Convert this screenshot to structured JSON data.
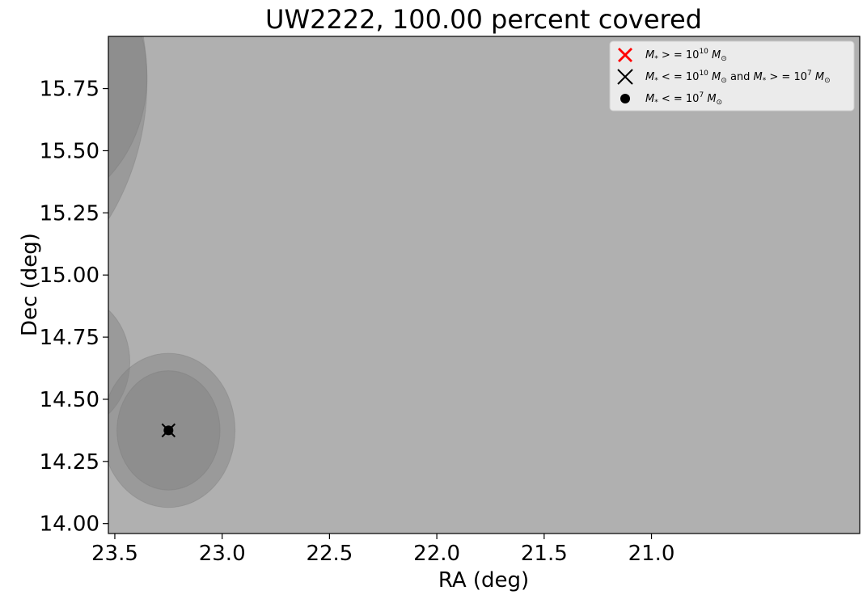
{
  "chart_data": {
    "type": "scatter",
    "title": "UW2222, 100.00 percent covered",
    "xlabel": "RA (deg)",
    "ylabel": "Dec (deg)",
    "xlim": [
      23.53,
      20.03
    ],
    "ylim": [
      13.96,
      15.96
    ],
    "x_inverted": true,
    "xticks": [
      23.5,
      23.0,
      22.5,
      22.0,
      21.5,
      21.0
    ],
    "xtick_labels": [
      "23.5",
      "23.0",
      "22.5",
      "22.0",
      "21.5",
      "21.0"
    ],
    "yticks": [
      14.0,
      14.25,
      14.5,
      14.75,
      15.0,
      15.25,
      15.5,
      15.75
    ],
    "ytick_labels": [
      "14.00",
      "14.25",
      "14.50",
      "14.75",
      "15.00",
      "15.25",
      "15.50",
      "15.75"
    ],
    "grid": false,
    "legend_position": "top-right",
    "legend": [
      {
        "marker": "red-filled-x",
        "label": "M* >= 10^10 M☉",
        "label_parts": [
          "M",
          "*",
          " > = 10",
          "10",
          " M",
          "⊙"
        ]
      },
      {
        "marker": "black-x",
        "label": "M* <= 10^10 M☉ and M* >= 10^7 M☉"
      },
      {
        "marker": "black-dot",
        "label": "M* <= 10^7 M☉"
      }
    ],
    "background_color": "#b0b0b0",
    "circle_color": "#808080",
    "coverage_circles": [
      {
        "ra": 24.3,
        "dec": 15.78,
        "radius_deg": 0.95
      },
      {
        "ra": 23.9,
        "dec": 15.8,
        "radius_deg": 0.55
      },
      {
        "ra": 23.7,
        "dec": 14.65,
        "radius_deg": 0.27
      },
      {
        "ra": 23.25,
        "dec": 14.375,
        "radius_deg": 0.31
      },
      {
        "ra": 23.25,
        "dec": 14.375,
        "radius_deg": 0.24
      }
    ],
    "points": [
      {
        "ra": 23.25,
        "dec": 14.375,
        "marker": "black-x"
      },
      {
        "ra": 23.25,
        "dec": 14.375,
        "marker": "black-dot"
      }
    ]
  }
}
